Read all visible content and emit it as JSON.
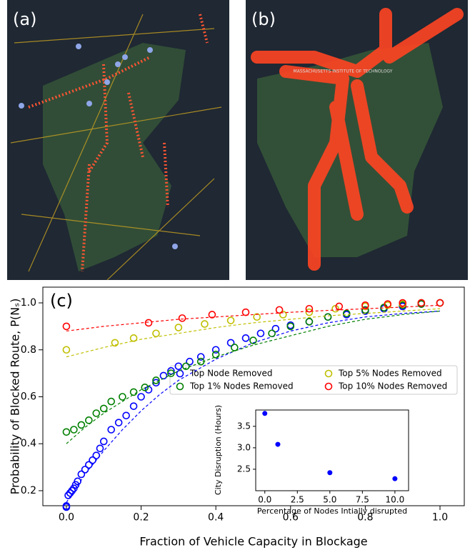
{
  "maps": [
    {
      "label": "(a)"
    },
    {
      "label": "(b)",
      "place_label": "MASSACHUSETTS INSTITUTE OF TECHNOLOGY"
    }
  ],
  "chart_data": [
    {
      "type": "scatter",
      "panel_label": "(c)",
      "x_label": "Fraction of Vehicle Capacity in Blockage",
      "y_label": "Probability of Blocked Route, P(Nₛ)",
      "xlim": [
        -0.063,
        1.065
      ],
      "ylim": [
        0.136,
        1.067
      ],
      "xticks": [
        {
          "value": 0,
          "label": "0.0"
        },
        0.2,
        0.4,
        0.6,
        0.8,
        {
          "value": 1,
          "label": "1.0"
        }
      ],
      "yticks": [
        0.2,
        0.4,
        0.6,
        0.8,
        {
          "value": 1,
          "label": "1.0"
        }
      ],
      "marker": "hollow",
      "series": [
        {
          "name": "Top Node Removed",
          "color": "#0000ff",
          "x": [
            0,
            0,
            0.005,
            0.01,
            0.015,
            0.02,
            0.025,
            0.03,
            0.04,
            0.05,
            0.06,
            0.07,
            0.08,
            0.09,
            0.1,
            0.12,
            0.14,
            0.16,
            0.18,
            0.2,
            0.22,
            0.24,
            0.26,
            0.28,
            0.3,
            0.33,
            0.36,
            0.4,
            0.44,
            0.48,
            0.52,
            0.56,
            0.6,
            0.65,
            0.7,
            0.75,
            0.8,
            0.85,
            0.9,
            0.95,
            1.0
          ],
          "values": [
            0.13,
            0.135,
            0.18,
            0.19,
            0.2,
            0.21,
            0.225,
            0.24,
            0.27,
            0.29,
            0.31,
            0.33,
            0.35,
            0.38,
            0.41,
            0.46,
            0.49,
            0.52,
            0.56,
            0.6,
            0.63,
            0.66,
            0.69,
            0.71,
            0.73,
            0.75,
            0.77,
            0.8,
            0.83,
            0.85,
            0.87,
            0.89,
            0.905,
            0.92,
            0.94,
            0.95,
            0.965,
            0.975,
            0.985,
            0.995,
            1.0
          ],
          "fit": {
            "x": [
              0,
              0.05,
              0.1,
              0.15,
              0.2,
              0.25,
              0.3,
              0.4,
              0.5,
              0.6,
              0.7,
              0.8,
              0.9,
              1.0
            ],
            "values": [
              0.15,
              0.27,
              0.37,
              0.46,
              0.54,
              0.61,
              0.67,
              0.76,
              0.83,
              0.88,
              0.915,
              0.94,
              0.955,
              0.965
            ]
          }
        },
        {
          "name": "Top 1% Nodes Removed",
          "color": "#008000",
          "x": [
            0,
            0.02,
            0.04,
            0.06,
            0.08,
            0.1,
            0.12,
            0.15,
            0.18,
            0.21,
            0.24,
            0.28,
            0.32,
            0.36,
            0.4,
            0.45,
            0.5,
            0.55,
            0.6,
            0.65,
            0.7,
            0.75,
            0.8,
            0.85,
            0.9,
            0.95,
            1.0
          ],
          "values": [
            0.45,
            0.46,
            0.48,
            0.5,
            0.53,
            0.55,
            0.58,
            0.6,
            0.62,
            0.64,
            0.67,
            0.7,
            0.73,
            0.75,
            0.78,
            0.81,
            0.84,
            0.87,
            0.9,
            0.92,
            0.94,
            0.955,
            0.97,
            0.98,
            0.99,
            0.995,
            1.0
          ],
          "fit": {
            "x": [
              0,
              0.05,
              0.1,
              0.15,
              0.2,
              0.25,
              0.3,
              0.4,
              0.5,
              0.6,
              0.7,
              0.8,
              0.9,
              1.0
            ],
            "values": [
              0.4,
              0.47,
              0.53,
              0.58,
              0.63,
              0.67,
              0.71,
              0.77,
              0.82,
              0.86,
              0.9,
              0.93,
              0.95,
              0.965
            ]
          }
        },
        {
          "name": "Top 5% Nodes Removed",
          "color": "#bfbf00",
          "x": [
            0,
            0.13,
            0.18,
            0.24,
            0.3,
            0.37,
            0.44,
            0.51,
            0.58,
            0.65,
            0.72,
            0.8,
            0.86,
            0.9,
            0.95,
            1.0
          ],
          "values": [
            0.8,
            0.83,
            0.85,
            0.87,
            0.895,
            0.91,
            0.925,
            0.94,
            0.95,
            0.96,
            0.975,
            0.985,
            0.99,
            0.995,
            1.0,
            1.0
          ],
          "fit": {
            "x": [
              0,
              0.1,
              0.2,
              0.3,
              0.4,
              0.5,
              0.6,
              0.7,
              0.8,
              0.9,
              1.0
            ],
            "values": [
              0.77,
              0.81,
              0.845,
              0.87,
              0.895,
              0.915,
              0.93,
              0.945,
              0.955,
              0.965,
              0.975
            ]
          }
        },
        {
          "name": "Top 10% Nodes Removed",
          "color": "#ff0000",
          "x": [
            0,
            0.22,
            0.31,
            0.39,
            0.48,
            0.57,
            0.65,
            0.73,
            0.8,
            0.86,
            0.9,
            0.95,
            1.0
          ],
          "values": [
            0.9,
            0.915,
            0.935,
            0.95,
            0.96,
            0.97,
            0.975,
            0.985,
            0.99,
            0.995,
            1.0,
            1.0,
            1.0
          ],
          "fit": {
            "x": [
              0,
              0.1,
              0.2,
              0.3,
              0.4,
              0.5,
              0.6,
              0.7,
              0.8,
              0.9,
              1.0
            ],
            "values": [
              0.88,
              0.9,
              0.915,
              0.93,
              0.94,
              0.95,
              0.96,
              0.968,
              0.975,
              0.982,
              0.99
            ]
          }
        }
      ]
    },
    {
      "type": "scatter",
      "marker": "filled",
      "x_label": "Percentage of Nodes Intially disrupted",
      "y_label": "City Disruption (Hours)",
      "xlim": [
        -0.7,
        11.05
      ],
      "ylim": [
        2.0,
        3.88
      ],
      "xticks": [
        {
          "value": 0,
          "label": "0.0"
        },
        2.5,
        {
          "value": 5,
          "label": "5.0"
        },
        7.5,
        {
          "value": 10,
          "label": "10.0"
        }
      ],
      "yticks": [
        2.5,
        {
          "value": 3,
          "label": "3.0"
        },
        3.5
      ],
      "series": [
        {
          "color": "#0000ff",
          "x": [
            0,
            1,
            5,
            10
          ],
          "values": [
            3.8,
            3.08,
            2.42,
            2.28
          ]
        }
      ]
    }
  ]
}
